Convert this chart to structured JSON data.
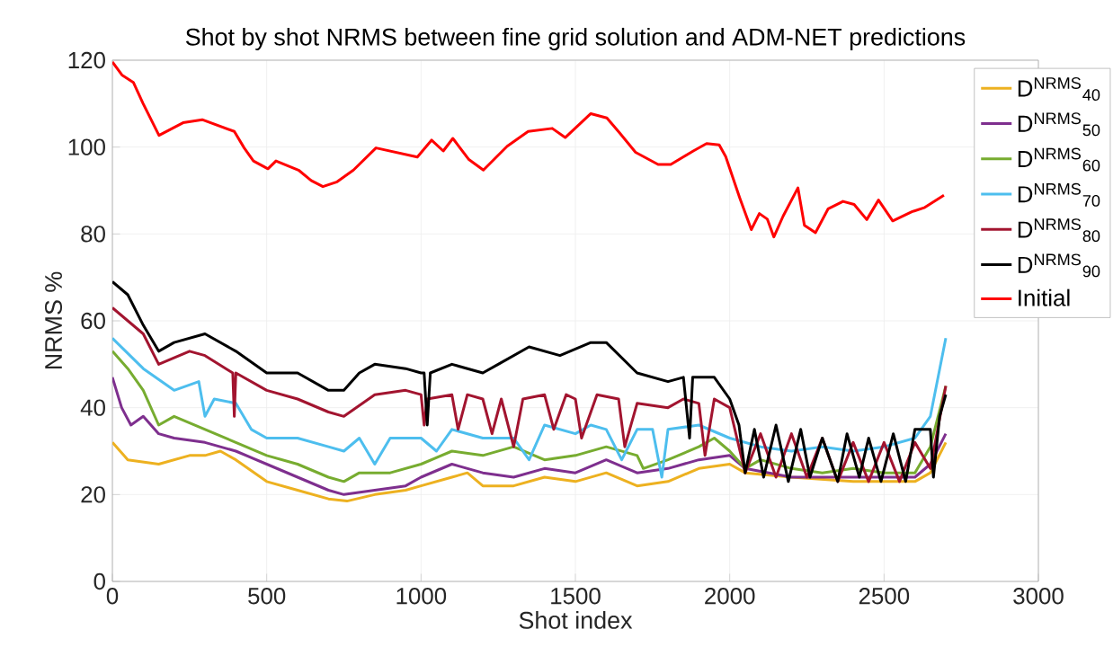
{
  "chart_data": {
    "type": "line",
    "title": "Shot by shot NRMS between fine grid solution and ADM-NET predictions",
    "xlabel": "Shot index",
    "ylabel": "NRMS %",
    "xlim": [
      0,
      3000
    ],
    "xticks": [
      0,
      500,
      1000,
      1500,
      2000,
      2500,
      3000
    ],
    "ylim": [
      0,
      120
    ],
    "yticks": [
      0,
      20,
      40,
      60,
      80,
      100,
      120
    ],
    "grid": true,
    "legend": "top right",
    "marker": "none",
    "line_style": "solid",
    "series": [
      {
        "name": "D$^{NRMS}$$_{40}$",
        "color": "#edb120",
        "x": [
          0,
          50,
          150,
          250,
          300,
          350,
          400,
          500,
          600,
          700,
          760,
          850,
          950,
          1000,
          1100,
          1150,
          1200,
          1300,
          1400,
          1500,
          1600,
          1700,
          1800,
          1900,
          2000,
          2050,
          2200,
          2400,
          2600,
          2650,
          2700
        ],
        "values": [
          32,
          28,
          27,
          29,
          29,
          30,
          28,
          23,
          21,
          19,
          18.5,
          20,
          21,
          22,
          24,
          25,
          22,
          22,
          24,
          23,
          25,
          22,
          23,
          26,
          27,
          25,
          24,
          23,
          23,
          25,
          32
        ]
      },
      {
        "name": "D$^{NRMS}$$_{50}$",
        "color": "#7e2f8e",
        "x": [
          0,
          30,
          60,
          100,
          150,
          200,
          300,
          400,
          500,
          600,
          700,
          750,
          850,
          950,
          1000,
          1100,
          1200,
          1300,
          1400,
          1500,
          1600,
          1700,
          1800,
          1900,
          2000,
          2050,
          2200,
          2400,
          2600,
          2650,
          2700
        ],
        "values": [
          47,
          40,
          36,
          38,
          34,
          33,
          32,
          30,
          27,
          24,
          21,
          20,
          21,
          22,
          24,
          27,
          25,
          24,
          26,
          25,
          28,
          25,
          26,
          28,
          29,
          26,
          24,
          24,
          24,
          27,
          34
        ]
      },
      {
        "name": "D$^{NRMS}$$_{60}$",
        "color": "#77ac30",
        "x": [
          0,
          50,
          100,
          150,
          200,
          300,
          400,
          500,
          600,
          700,
          750,
          800,
          900,
          1000,
          1100,
          1200,
          1300,
          1400,
          1500,
          1600,
          1700,
          1720,
          1800,
          1900,
          1950,
          2000,
          2050,
          2100,
          2200,
          2300,
          2400,
          2500,
          2600,
          2650,
          2700
        ],
        "values": [
          53,
          49,
          44,
          36,
          38,
          35,
          32,
          29,
          27,
          24,
          23,
          25,
          25,
          27,
          30,
          29,
          31,
          28,
          29,
          31,
          29,
          26,
          28,
          31,
          33,
          30,
          26,
          28,
          26,
          25,
          26,
          25,
          25,
          31,
          45
        ]
      },
      {
        "name": "D$^{NRMS}$$_{70}$",
        "color": "#4dbeee",
        "x": [
          0,
          100,
          200,
          280,
          300,
          330,
          400,
          450,
          500,
          600,
          700,
          750,
          800,
          850,
          900,
          1000,
          1050,
          1100,
          1200,
          1300,
          1350,
          1400,
          1500,
          1550,
          1600,
          1650,
          1700,
          1750,
          1780,
          1800,
          1900,
          2000,
          2100,
          2200,
          2300,
          2400,
          2500,
          2600,
          2650,
          2700
        ],
        "values": [
          56,
          49,
          44,
          46,
          38,
          42,
          41,
          35,
          33,
          33,
          31,
          30,
          33,
          27,
          33,
          33,
          30,
          35,
          33,
          33,
          28,
          36,
          34,
          36,
          35,
          28,
          35,
          35,
          24,
          35,
          36,
          33,
          31,
          30,
          31,
          30,
          31,
          33,
          38,
          56
        ]
      },
      {
        "name": "D$^{NRMS}$$_{80}$",
        "color": "#a2142f",
        "x": [
          0,
          100,
          150,
          250,
          300,
          390,
          395,
          400,
          500,
          600,
          700,
          750,
          850,
          950,
          1000,
          1010,
          1020,
          1100,
          1120,
          1150,
          1200,
          1230,
          1260,
          1300,
          1330,
          1400,
          1430,
          1470,
          1500,
          1520,
          1570,
          1640,
          1660,
          1700,
          1800,
          1850,
          1900,
          1920,
          1950,
          2000,
          2050,
          2100,
          2150,
          2200,
          2250,
          2300,
          2350,
          2400,
          2450,
          2500,
          2550,
          2600,
          2650,
          2700
        ],
        "values": [
          63,
          57,
          50,
          53,
          52,
          48,
          38,
          48,
          44,
          42,
          39,
          38,
          43,
          44,
          43,
          36,
          42,
          43,
          35,
          43,
          42,
          34,
          42,
          31,
          42,
          43,
          35,
          43,
          42,
          33,
          43,
          42,
          31,
          41,
          40,
          42,
          41,
          29,
          42,
          40,
          25,
          34,
          24,
          34,
          24,
          33,
          23,
          32,
          23,
          32,
          23,
          32,
          26,
          45
        ]
      },
      {
        "name": "D$^{NRMS}$$_{90}$",
        "color": "#000000",
        "x": [
          0,
          50,
          100,
          150,
          200,
          300,
          400,
          500,
          600,
          700,
          750,
          800,
          850,
          950,
          1000,
          1010,
          1020,
          1030,
          1100,
          1200,
          1250,
          1350,
          1450,
          1550,
          1600,
          1700,
          1800,
          1850,
          1870,
          1880,
          1950,
          2000,
          2030,
          2050,
          2080,
          2110,
          2150,
          2190,
          2230,
          2260,
          2300,
          2350,
          2380,
          2420,
          2450,
          2490,
          2530,
          2570,
          2600,
          2650,
          2660,
          2680,
          2700
        ],
        "values": [
          69,
          66,
          59,
          53,
          55,
          57,
          53,
          48,
          48,
          44,
          44,
          48,
          50,
          49,
          48,
          48,
          36,
          48,
          50,
          48,
          50,
          54,
          52,
          55,
          55,
          48,
          46,
          47,
          33,
          47,
          47,
          42,
          36,
          25,
          35,
          24,
          36,
          23,
          35,
          24,
          33,
          23,
          34,
          24,
          33,
          23,
          34,
          23,
          35,
          35,
          24,
          38,
          43
        ]
      },
      {
        "name": "Initial",
        "color": "#ff0000",
        "x": [
          0,
          31,
          68,
          99,
          151,
          229,
          291,
          395,
          427,
          457,
          504,
          530,
          603,
          644,
          682,
          728,
          781,
          854,
          988,
          1034,
          1072,
          1103,
          1154,
          1202,
          1279,
          1347,
          1425,
          1467,
          1550,
          1602,
          1643,
          1695,
          1768,
          1809,
          1882,
          1925,
          1966,
          1987,
          2033,
          2070,
          2096,
          2122,
          2143,
          2173,
          2221,
          2242,
          2278,
          2319,
          2367,
          2403,
          2444,
          2482,
          2528,
          2590,
          2632,
          2694
        ],
        "values": [
          119.6,
          116.6,
          114.9,
          110.1,
          102.7,
          105.6,
          106.3,
          103.6,
          99.8,
          96.8,
          95.0,
          96.8,
          94.7,
          92.3,
          90.9,
          92.0,
          94.7,
          99.8,
          97.7,
          101.6,
          99.1,
          102.0,
          97.2,
          94.7,
          100.2,
          103.6,
          104.3,
          102.2,
          107.7,
          106.7,
          103.3,
          98.8,
          96.0,
          96.0,
          99.1,
          100.8,
          100.5,
          97.8,
          88.2,
          81.0,
          84.7,
          83.4,
          79.3,
          84.1,
          90.6,
          82.0,
          80.3,
          85.8,
          87.5,
          86.8,
          83.3,
          87.8,
          83.0,
          85.1,
          86.1,
          88.9
        ]
      }
    ]
  }
}
